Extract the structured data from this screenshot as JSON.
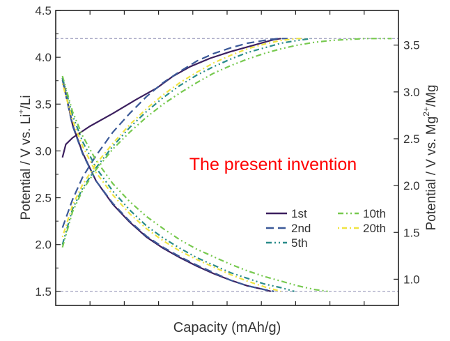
{
  "chart_data": {
    "type": "line",
    "annotation": "The present invention",
    "xlabel": "Capacity (mAh/g)",
    "ylabel_left": {
      "base": "Potential / V vs. Li",
      "sup": "+",
      "tail": "/Li"
    },
    "ylabel_right": {
      "base": "Potential / V vs. Mg",
      "sup": "2+",
      "tail": "/Mg"
    },
    "xlim": [
      0,
      1
    ],
    "ylim_left": [
      1.35,
      4.5
    ],
    "ylim_right": [
      0.72,
      3.87
    ],
    "yticks_left": [
      1.5,
      2.0,
      2.5,
      3.0,
      3.5,
      4.0,
      4.5
    ],
    "yticks_left_labels": [
      "1.5",
      "2.0",
      "2.5",
      "3.0",
      "3.5",
      "4.0",
      "4.5"
    ],
    "yticks_right": [
      1.0,
      1.5,
      2.0,
      2.5,
      3.0,
      3.5
    ],
    "yticks_right_labels": [
      "1.0",
      "1.5",
      "2.0",
      "2.5",
      "3.0",
      "3.5"
    ],
    "reference_lines_left": [
      4.2,
      1.5
    ],
    "legend_placement": "lower-right",
    "series": [
      {
        "name": "1st",
        "color": "#3b1f5e",
        "dash": "solid",
        "charge": [
          [
            0.0,
            2.93
          ],
          [
            0.01,
            3.07
          ],
          [
            0.03,
            3.14
          ],
          [
            0.08,
            3.26
          ],
          [
            0.15,
            3.4
          ],
          [
            0.22,
            3.55
          ],
          [
            0.28,
            3.67
          ],
          [
            0.33,
            3.8
          ],
          [
            0.38,
            3.9
          ],
          [
            0.44,
            3.99
          ],
          [
            0.5,
            4.06
          ],
          [
            0.56,
            4.12
          ],
          [
            0.6,
            4.16
          ],
          [
            0.63,
            4.19
          ],
          [
            0.65,
            4.2
          ]
        ],
        "discharge": [
          [
            0.0,
            3.78
          ],
          [
            0.03,
            3.28
          ],
          [
            0.06,
            2.98
          ],
          [
            0.1,
            2.68
          ],
          [
            0.15,
            2.43
          ],
          [
            0.2,
            2.24
          ],
          [
            0.25,
            2.08
          ],
          [
            0.3,
            1.96
          ],
          [
            0.35,
            1.86
          ],
          [
            0.4,
            1.77
          ],
          [
            0.45,
            1.69
          ],
          [
            0.5,
            1.62
          ],
          [
            0.55,
            1.56
          ],
          [
            0.6,
            1.52
          ],
          [
            0.62,
            1.5
          ]
        ]
      },
      {
        "name": "2nd",
        "color": "#3b5998",
        "dash": "long-dash",
        "charge": [
          [
            0.0,
            2.18
          ],
          [
            0.03,
            2.48
          ],
          [
            0.06,
            2.72
          ],
          [
            0.1,
            2.95
          ],
          [
            0.15,
            3.2
          ],
          [
            0.2,
            3.4
          ],
          [
            0.25,
            3.58
          ],
          [
            0.3,
            3.73
          ],
          [
            0.35,
            3.85
          ],
          [
            0.4,
            3.96
          ],
          [
            0.45,
            4.04
          ],
          [
            0.5,
            4.1
          ],
          [
            0.55,
            4.15
          ],
          [
            0.6,
            4.18
          ],
          [
            0.64,
            4.2
          ],
          [
            0.67,
            4.2
          ]
        ],
        "discharge": [
          [
            0.0,
            3.76
          ],
          [
            0.03,
            3.27
          ],
          [
            0.06,
            2.97
          ],
          [
            0.1,
            2.68
          ],
          [
            0.15,
            2.44
          ],
          [
            0.2,
            2.25
          ],
          [
            0.25,
            2.09
          ],
          [
            0.3,
            1.97
          ],
          [
            0.35,
            1.87
          ],
          [
            0.4,
            1.78
          ],
          [
            0.45,
            1.7
          ],
          [
            0.5,
            1.62
          ],
          [
            0.55,
            1.56
          ],
          [
            0.6,
            1.52
          ],
          [
            0.63,
            1.5
          ]
        ]
      },
      {
        "name": "5th",
        "color": "#2a8c8a",
        "dash": "dash-dot-dot",
        "charge": [
          [
            0.0,
            2.0
          ],
          [
            0.03,
            2.38
          ],
          [
            0.06,
            2.6
          ],
          [
            0.1,
            2.82
          ],
          [
            0.15,
            3.05
          ],
          [
            0.2,
            3.25
          ],
          [
            0.25,
            3.42
          ],
          [
            0.3,
            3.57
          ],
          [
            0.35,
            3.7
          ],
          [
            0.4,
            3.81
          ],
          [
            0.45,
            3.9
          ],
          [
            0.5,
            3.98
          ],
          [
            0.55,
            4.05
          ],
          [
            0.6,
            4.1
          ],
          [
            0.65,
            4.15
          ],
          [
            0.7,
            4.18
          ],
          [
            0.74,
            4.2
          ]
        ],
        "discharge": [
          [
            0.0,
            3.78
          ],
          [
            0.03,
            3.38
          ],
          [
            0.06,
            3.1
          ],
          [
            0.1,
            2.82
          ],
          [
            0.15,
            2.57
          ],
          [
            0.2,
            2.37
          ],
          [
            0.25,
            2.2
          ],
          [
            0.3,
            2.07
          ],
          [
            0.35,
            1.96
          ],
          [
            0.4,
            1.86
          ],
          [
            0.45,
            1.78
          ],
          [
            0.5,
            1.7
          ],
          [
            0.55,
            1.64
          ],
          [
            0.6,
            1.58
          ],
          [
            0.65,
            1.54
          ],
          [
            0.69,
            1.5
          ]
        ]
      },
      {
        "name": "10th",
        "color": "#77c94f",
        "dash": "dash-dot-dot",
        "charge": [
          [
            0.0,
            1.97
          ],
          [
            0.03,
            2.35
          ],
          [
            0.06,
            2.58
          ],
          [
            0.1,
            2.8
          ],
          [
            0.15,
            3.02
          ],
          [
            0.2,
            3.2
          ],
          [
            0.25,
            3.36
          ],
          [
            0.3,
            3.5
          ],
          [
            0.35,
            3.62
          ],
          [
            0.4,
            3.73
          ],
          [
            0.45,
            3.83
          ],
          [
            0.5,
            3.91
          ],
          [
            0.55,
            3.98
          ],
          [
            0.6,
            4.04
          ],
          [
            0.65,
            4.09
          ],
          [
            0.7,
            4.13
          ],
          [
            0.75,
            4.16
          ],
          [
            0.8,
            4.18
          ],
          [
            0.85,
            4.19
          ],
          [
            0.9,
            4.2
          ],
          [
            0.98,
            4.2
          ]
        ],
        "discharge": [
          [
            0.0,
            3.8
          ],
          [
            0.03,
            3.42
          ],
          [
            0.06,
            3.16
          ],
          [
            0.1,
            2.9
          ],
          [
            0.15,
            2.65
          ],
          [
            0.2,
            2.46
          ],
          [
            0.25,
            2.3
          ],
          [
            0.3,
            2.17
          ],
          [
            0.35,
            2.05
          ],
          [
            0.4,
            1.95
          ],
          [
            0.45,
            1.87
          ],
          [
            0.5,
            1.79
          ],
          [
            0.55,
            1.72
          ],
          [
            0.6,
            1.66
          ],
          [
            0.65,
            1.61
          ],
          [
            0.7,
            1.56
          ],
          [
            0.75,
            1.52
          ],
          [
            0.79,
            1.5
          ]
        ]
      },
      {
        "name": "20th",
        "color": "#f0e442",
        "dash": "dot-dash",
        "charge": [
          [
            0.0,
            2.08
          ],
          [
            0.03,
            2.42
          ],
          [
            0.06,
            2.64
          ],
          [
            0.1,
            2.86
          ],
          [
            0.15,
            3.08
          ],
          [
            0.2,
            3.28
          ],
          [
            0.25,
            3.45
          ],
          [
            0.3,
            3.6
          ],
          [
            0.35,
            3.73
          ],
          [
            0.4,
            3.84
          ],
          [
            0.45,
            3.94
          ],
          [
            0.5,
            4.02
          ],
          [
            0.55,
            4.09
          ],
          [
            0.6,
            4.14
          ],
          [
            0.65,
            4.18
          ],
          [
            0.7,
            4.2
          ],
          [
            0.72,
            4.2
          ]
        ],
        "discharge": [
          [
            0.0,
            3.72
          ],
          [
            0.03,
            3.33
          ],
          [
            0.06,
            3.05
          ],
          [
            0.1,
            2.77
          ],
          [
            0.15,
            2.53
          ],
          [
            0.2,
            2.33
          ],
          [
            0.25,
            2.17
          ],
          [
            0.3,
            2.04
          ],
          [
            0.35,
            1.93
          ],
          [
            0.4,
            1.84
          ],
          [
            0.45,
            1.76
          ],
          [
            0.5,
            1.68
          ],
          [
            0.55,
            1.61
          ],
          [
            0.6,
            1.55
          ],
          [
            0.65,
            1.5
          ]
        ]
      }
    ]
  }
}
